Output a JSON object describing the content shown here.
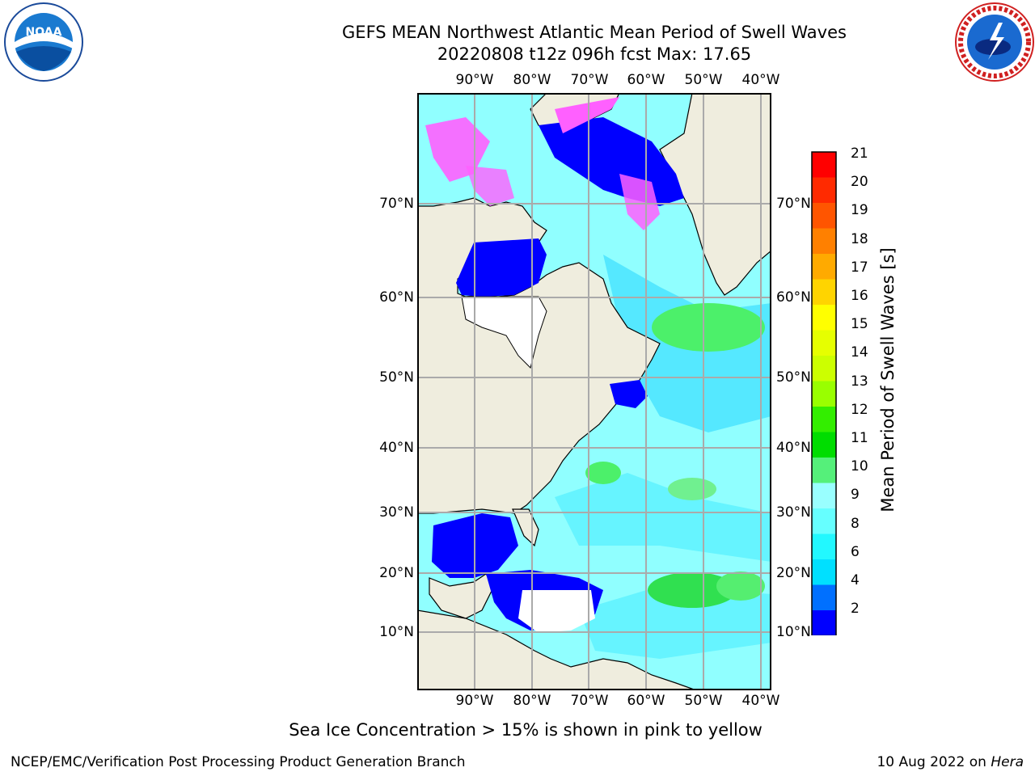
{
  "header": {
    "title_line1": "GEFS MEAN Northwest Atlantic Mean Period of Swell Waves",
    "title_line2": "20220808 t12z 096h fcst   Max: 17.65"
  },
  "logos": {
    "left": "noaa-logo",
    "right": "nws-logo"
  },
  "map": {
    "lon_labels": [
      "90°W",
      "80°W",
      "70°W",
      "60°W",
      "50°W",
      "40°W"
    ],
    "lat_labels": [
      "70°N",
      "60°N",
      "50°N",
      "40°N",
      "30°N",
      "20°N",
      "10°N"
    ],
    "colors": {
      "land": "#efedde",
      "ocean_short": "#0000ff",
      "ocean_mid": "#55e8ff",
      "ocean_long": "#90ffff",
      "green": "#4cf06a",
      "ice_pink": "#ff60ff",
      "grid": "#aaaaaa"
    }
  },
  "colorbar": {
    "label": "Mean Period of Swell Waves [s]",
    "ticks": [
      "21",
      "20",
      "19",
      "18",
      "17",
      "16",
      "15",
      "14",
      "13",
      "12",
      "11",
      "10",
      "9",
      "8",
      "6",
      "4",
      "2"
    ],
    "colors": [
      "#ff0000",
      "#ff2a00",
      "#ff5500",
      "#ff8000",
      "#ffaa00",
      "#ffd400",
      "#ffff00",
      "#e6ff00",
      "#ccff00",
      "#99ff00",
      "#33ee00",
      "#00dd00",
      "#55f07a",
      "#99ffff",
      "#66ffff",
      "#22f8ff",
      "#00e0ff",
      "#0070ff",
      "#0000ff"
    ]
  },
  "notes": {
    "ice": "Sea Ice Concentration > 15% is shown in pink to yellow"
  },
  "footer": {
    "left": "NCEP/EMC/Verification Post Processing Product Generation Branch",
    "date": "10 Aug 2022 on ",
    "machine": "Hera"
  }
}
